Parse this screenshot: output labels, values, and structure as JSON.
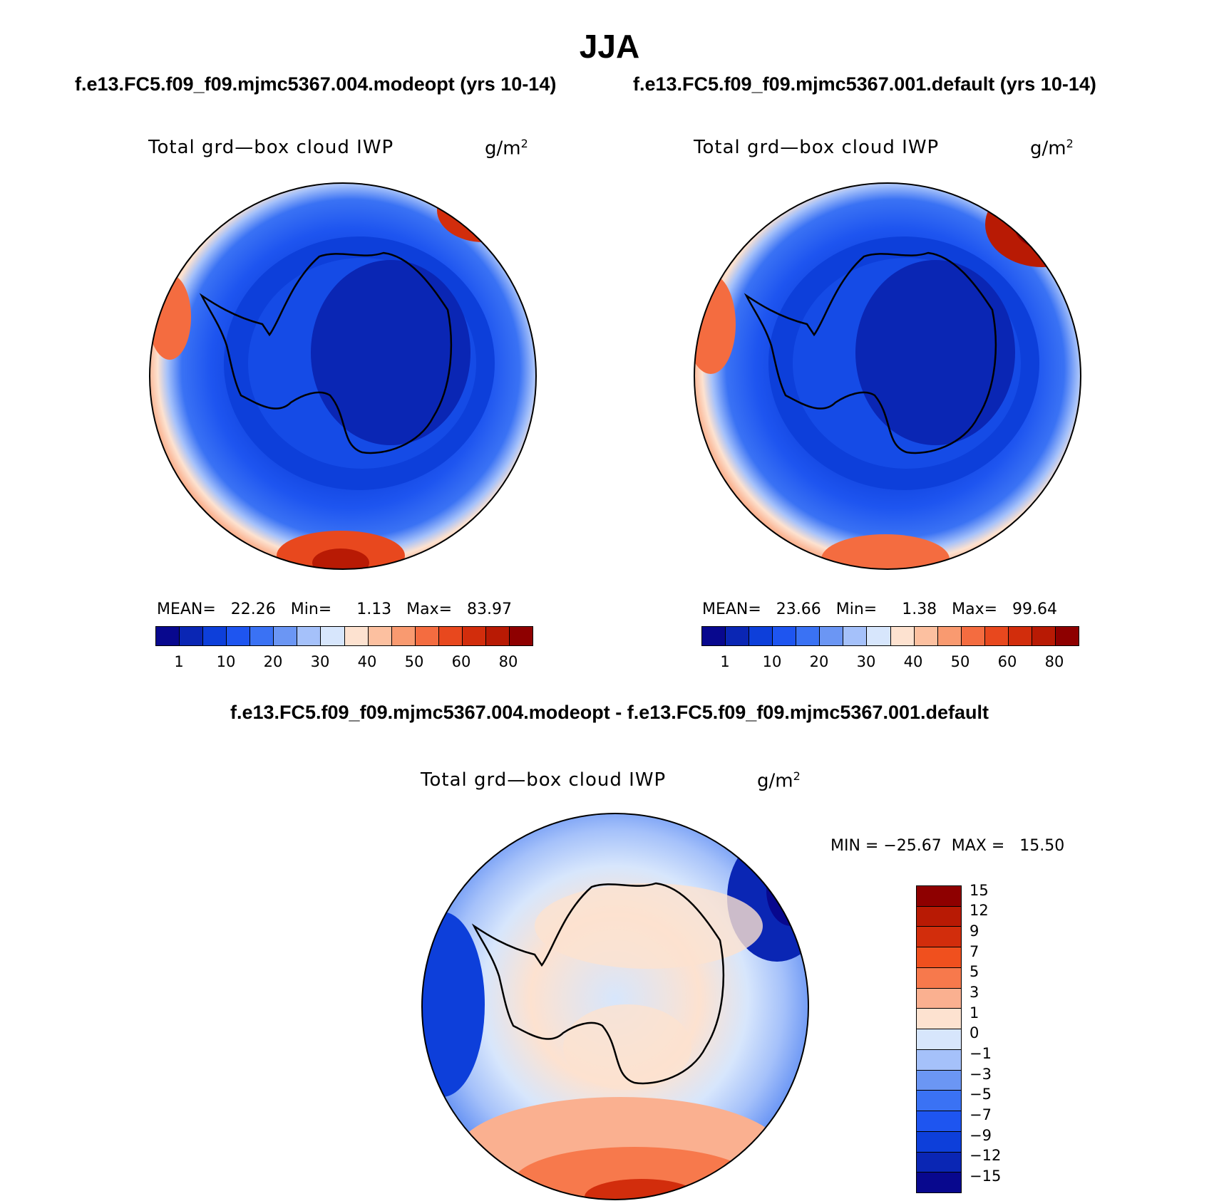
{
  "title": "JJA",
  "panels": [
    {
      "run": "f.e13.FC5.f09_f09.mjmc5367.004.modeopt (yrs 10-14)",
      "variable": "Total grd—box cloud IWP",
      "units_base": "g/m",
      "units_exp": "2",
      "stats": "MEAN=   22.26   Min=     1.13   Max=   83.97",
      "colorbar_ticks": [
        "1",
        "10",
        "20",
        "30",
        "40",
        "50",
        "60",
        "80"
      ]
    },
    {
      "run": "f.e13.FC5.f09_f09.mjmc5367.001.default (yrs 10-14)",
      "variable": "Total grd—box cloud IWP",
      "units_base": "g/m",
      "units_exp": "2",
      "stats": "MEAN=   23.66   Min=     1.38   Max=   99.64",
      "colorbar_ticks": [
        "1",
        "10",
        "20",
        "30",
        "40",
        "50",
        "60",
        "80"
      ]
    }
  ],
  "difference": {
    "title": "f.e13.FC5.f09_f09.mjmc5367.004.modeopt - f.e13.FC5.f09_f09.mjmc5367.001.default",
    "variable": "Total grd—box cloud IWP",
    "units_base": "g/m",
    "units_exp": "2",
    "minmax": "MIN = −25.67  MAX =   15.50",
    "colorbar_ticks": [
      "15",
      "12",
      "9",
      "7",
      "5",
      "3",
      "1",
      "0",
      "−1",
      "−3",
      "−5",
      "−7",
      "−9",
      "−12",
      "−15"
    ]
  },
  "colors": {
    "main_scale": [
      "#08088e",
      "#0a26b4",
      "#0d3fda",
      "#1e55f0",
      "#3a72f4",
      "#6b96f4",
      "#a5c1fa",
      "#d7e6fc",
      "#fde2d0",
      "#fcc0a0",
      "#f99a70",
      "#f46c40",
      "#e8481e",
      "#d22d0c",
      "#b81a04",
      "#8e0000"
    ],
    "diff_scale": [
      "#8e0000",
      "#b81a04",
      "#d22d0c",
      "#f0501e",
      "#f7794c",
      "#fab090",
      "#fde2d0",
      "#d7e6fc",
      "#a5c1fa",
      "#6b96f4",
      "#3a72f4",
      "#1e55f0",
      "#0d3fda",
      "#0a26b4",
      "#08088e"
    ]
  }
}
